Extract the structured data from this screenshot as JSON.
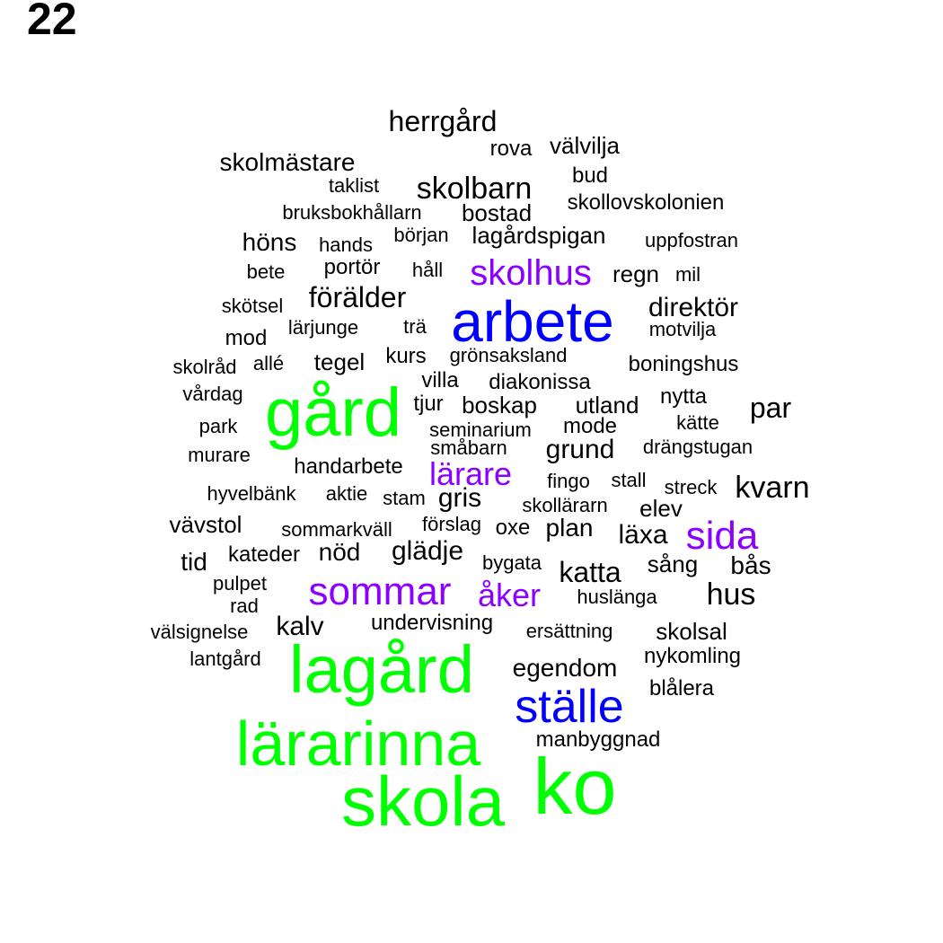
{
  "panel_number": "22",
  "colors": {
    "green": "#00ff00",
    "blue": "#0000ff",
    "purple": "#8b00ff",
    "black": "#000000"
  },
  "words": [
    {
      "text": "herrgård",
      "color": "black"
    },
    {
      "text": "rova",
      "color": "black"
    },
    {
      "text": "välvilja",
      "color": "black"
    },
    {
      "text": "skolmästare",
      "color": "black"
    },
    {
      "text": "bud",
      "color": "black"
    },
    {
      "text": "taklist",
      "color": "black"
    },
    {
      "text": "skolbarn",
      "color": "black"
    },
    {
      "text": "skollovskolonien",
      "color": "black"
    },
    {
      "text": "bruksbokhållarn",
      "color": "black"
    },
    {
      "text": "bostad",
      "color": "black"
    },
    {
      "text": "början",
      "color": "black"
    },
    {
      "text": "lagårdspigan",
      "color": "black"
    },
    {
      "text": "höns",
      "color": "black"
    },
    {
      "text": "hands",
      "color": "black"
    },
    {
      "text": "uppfostran",
      "color": "black"
    },
    {
      "text": "portör",
      "color": "black"
    },
    {
      "text": "bete",
      "color": "black"
    },
    {
      "text": "håll",
      "color": "black"
    },
    {
      "text": "skolhus",
      "color": "purple"
    },
    {
      "text": "regn",
      "color": "black"
    },
    {
      "text": "mil",
      "color": "black"
    },
    {
      "text": "förälder",
      "color": "black"
    },
    {
      "text": "skötsel",
      "color": "black"
    },
    {
      "text": "arbete",
      "color": "blue"
    },
    {
      "text": "direktör",
      "color": "black"
    },
    {
      "text": "lärjunge",
      "color": "black"
    },
    {
      "text": "trä",
      "color": "black"
    },
    {
      "text": "motvilja",
      "color": "black"
    },
    {
      "text": "mod",
      "color": "black"
    },
    {
      "text": "kurs",
      "color": "black"
    },
    {
      "text": "grönsaksland",
      "color": "black"
    },
    {
      "text": "skolråd",
      "color": "black"
    },
    {
      "text": "allé",
      "color": "black"
    },
    {
      "text": "tegel",
      "color": "black"
    },
    {
      "text": "boningshus",
      "color": "black"
    },
    {
      "text": "villa",
      "color": "black"
    },
    {
      "text": "diakonissa",
      "color": "black"
    },
    {
      "text": "vårdag",
      "color": "black"
    },
    {
      "text": "gård",
      "color": "green"
    },
    {
      "text": "tjur",
      "color": "black"
    },
    {
      "text": "boskap",
      "color": "black"
    },
    {
      "text": "utland",
      "color": "black"
    },
    {
      "text": "nytta",
      "color": "black"
    },
    {
      "text": "par",
      "color": "black"
    },
    {
      "text": "park",
      "color": "black"
    },
    {
      "text": "seminarium",
      "color": "black"
    },
    {
      "text": "mode",
      "color": "black"
    },
    {
      "text": "kätte",
      "color": "black"
    },
    {
      "text": "småbarn",
      "color": "black"
    },
    {
      "text": "grund",
      "color": "black"
    },
    {
      "text": "drängstugan",
      "color": "black"
    },
    {
      "text": "murare",
      "color": "black"
    },
    {
      "text": "handarbete",
      "color": "black"
    },
    {
      "text": "lärare",
      "color": "purple"
    },
    {
      "text": "fingo",
      "color": "black"
    },
    {
      "text": "stall",
      "color": "black"
    },
    {
      "text": "streck",
      "color": "black"
    },
    {
      "text": "kvarn",
      "color": "black"
    },
    {
      "text": "hyvelbänk",
      "color": "black"
    },
    {
      "text": "aktie",
      "color": "black"
    },
    {
      "text": "stam",
      "color": "black"
    },
    {
      "text": "gris",
      "color": "black"
    },
    {
      "text": "skollärarn",
      "color": "black"
    },
    {
      "text": "elev",
      "color": "black"
    },
    {
      "text": "vävstol",
      "color": "black"
    },
    {
      "text": "sommarkväll",
      "color": "black"
    },
    {
      "text": "förslag",
      "color": "black"
    },
    {
      "text": "oxe",
      "color": "black"
    },
    {
      "text": "plan",
      "color": "black"
    },
    {
      "text": "läxa",
      "color": "black"
    },
    {
      "text": "sida",
      "color": "purple"
    },
    {
      "text": "tid",
      "color": "black"
    },
    {
      "text": "kateder",
      "color": "black"
    },
    {
      "text": "nöd",
      "color": "black"
    },
    {
      "text": "glädje",
      "color": "black"
    },
    {
      "text": "bygata",
      "color": "black"
    },
    {
      "text": "sång",
      "color": "black"
    },
    {
      "text": "katta",
      "color": "black"
    },
    {
      "text": "bås",
      "color": "black"
    },
    {
      "text": "pulpet",
      "color": "black"
    },
    {
      "text": "sommar",
      "color": "purple"
    },
    {
      "text": "åker",
      "color": "purple"
    },
    {
      "text": "huslänga",
      "color": "black"
    },
    {
      "text": "hus",
      "color": "black"
    },
    {
      "text": "rad",
      "color": "black"
    },
    {
      "text": "kalv",
      "color": "black"
    },
    {
      "text": "undervisning",
      "color": "black"
    },
    {
      "text": "välsignelse",
      "color": "black"
    },
    {
      "text": "ersättning",
      "color": "black"
    },
    {
      "text": "skolsal",
      "color": "black"
    },
    {
      "text": "lantgård",
      "color": "black"
    },
    {
      "text": "lagård",
      "color": "green"
    },
    {
      "text": "nykomling",
      "color": "black"
    },
    {
      "text": "egendom",
      "color": "black"
    },
    {
      "text": "ställe",
      "color": "blue"
    },
    {
      "text": "blålera",
      "color": "black"
    },
    {
      "text": "lärarinna",
      "color": "green"
    },
    {
      "text": "manbyggnad",
      "color": "black"
    },
    {
      "text": "ko",
      "color": "green"
    },
    {
      "text": "skola",
      "color": "green"
    }
  ]
}
